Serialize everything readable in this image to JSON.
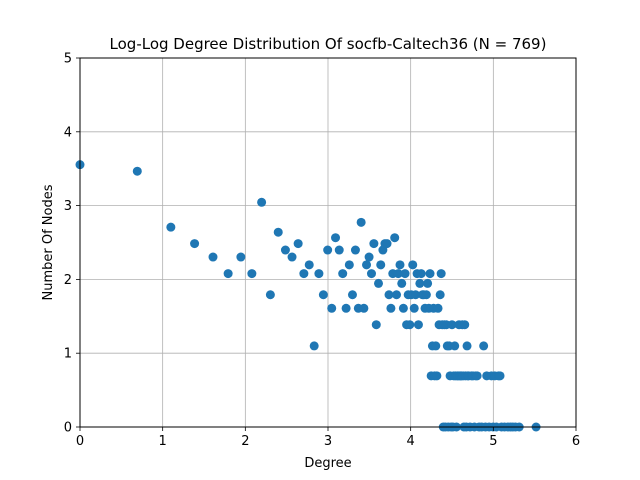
{
  "chart_data": {
    "type": "scatter",
    "title": "Log-Log Degree Distribution Of socfb-Caltech36 (N = 769)",
    "xlabel": "Degree",
    "ylabel": "Number Of Nodes",
    "xlim": [
      0,
      6
    ],
    "ylim": [
      0,
      5
    ],
    "xticks": [
      "0",
      "1",
      "2",
      "3",
      "4",
      "5",
      "6"
    ],
    "yticks": [
      "0",
      "1",
      "2",
      "3",
      "4",
      "5"
    ],
    "grid": true,
    "color": "#1f77b4",
    "points": [
      [
        0.0,
        3.555
      ],
      [
        0.693,
        3.466
      ],
      [
        1.099,
        2.708
      ],
      [
        1.386,
        2.485
      ],
      [
        1.609,
        2.303
      ],
      [
        1.792,
        2.079
      ],
      [
        1.946,
        2.303
      ],
      [
        2.079,
        2.079
      ],
      [
        2.197,
        3.045
      ],
      [
        2.303,
        1.792
      ],
      [
        2.398,
        2.639
      ],
      [
        2.485,
        2.398
      ],
      [
        2.565,
        2.303
      ],
      [
        2.639,
        2.485
      ],
      [
        2.708,
        2.079
      ],
      [
        2.773,
        2.197
      ],
      [
        2.833,
        1.099
      ],
      [
        2.89,
        2.079
      ],
      [
        2.944,
        1.792
      ],
      [
        2.996,
        2.398
      ],
      [
        3.045,
        1.609
      ],
      [
        3.091,
        2.565
      ],
      [
        3.136,
        2.398
      ],
      [
        3.178,
        2.079
      ],
      [
        3.219,
        1.609
      ],
      [
        3.258,
        2.197
      ],
      [
        3.296,
        1.792
      ],
      [
        3.332,
        2.398
      ],
      [
        3.367,
        1.609
      ],
      [
        3.401,
        2.773
      ],
      [
        3.434,
        1.609
      ],
      [
        3.466,
        2.197
      ],
      [
        3.497,
        2.303
      ],
      [
        3.526,
        2.079
      ],
      [
        3.555,
        2.485
      ],
      [
        3.584,
        1.386
      ],
      [
        3.611,
        1.946
      ],
      [
        3.638,
        2.197
      ],
      [
        3.664,
        2.398
      ],
      [
        3.689,
        2.485
      ],
      [
        3.714,
        2.485
      ],
      [
        3.738,
        1.792
      ],
      [
        3.761,
        1.609
      ],
      [
        3.784,
        2.079
      ],
      [
        3.807,
        2.565
      ],
      [
        3.829,
        1.792
      ],
      [
        3.85,
        2.079
      ],
      [
        3.871,
        2.197
      ],
      [
        3.892,
        1.946
      ],
      [
        3.912,
        1.609
      ],
      [
        3.932,
        2.079
      ],
      [
        3.951,
        1.386
      ],
      [
        3.97,
        1.792
      ],
      [
        3.989,
        1.386
      ],
      [
        4.007,
        1.792
      ],
      [
        4.025,
        2.197
      ],
      [
        4.043,
        1.609
      ],
      [
        4.06,
        1.792
      ],
      [
        4.078,
        2.079
      ],
      [
        4.094,
        1.386
      ],
      [
        4.111,
        1.946
      ],
      [
        4.127,
        2.079
      ],
      [
        4.143,
        1.792
      ],
      [
        4.159,
        1.792
      ],
      [
        4.174,
        1.609
      ],
      [
        4.19,
        1.792
      ],
      [
        4.205,
        1.946
      ],
      [
        4.22,
        1.609
      ],
      [
        4.234,
        2.079
      ],
      [
        4.248,
        0.693
      ],
      [
        4.263,
        1.099
      ],
      [
        4.277,
        1.609
      ],
      [
        4.29,
        0.693
      ],
      [
        4.304,
        1.099
      ],
      [
        4.317,
        0.693
      ],
      [
        4.331,
        1.609
      ],
      [
        4.344,
        1.386
      ],
      [
        4.357,
        1.792
      ],
      [
        4.369,
        2.079
      ],
      [
        4.382,
        1.386
      ],
      [
        4.394,
        0.0
      ],
      [
        4.407,
        1.386
      ],
      [
        4.419,
        0.0
      ],
      [
        4.431,
        1.386
      ],
      [
        4.443,
        1.099
      ],
      [
        4.454,
        0.0
      ],
      [
        4.466,
        1.099
      ],
      [
        4.477,
        0.693
      ],
      [
        4.489,
        0.0
      ],
      [
        4.5,
        1.386
      ],
      [
        4.511,
        0.0
      ],
      [
        4.522,
        0.693
      ],
      [
        4.533,
        1.099
      ],
      [
        4.543,
        0.693
      ],
      [
        4.554,
        0.0
      ],
      [
        4.564,
        0.693
      ],
      [
        4.575,
        0.693
      ],
      [
        4.585,
        1.386
      ],
      [
        4.595,
        0.693
      ],
      [
        4.605,
        0.693
      ],
      [
        4.615,
        0.693
      ],
      [
        4.625,
        1.386
      ],
      [
        4.635,
        0.693
      ],
      [
        4.644,
        0.0
      ],
      [
        4.654,
        1.386
      ],
      [
        4.663,
        0.693
      ],
      [
        4.673,
        0.0
      ],
      [
        4.682,
        1.099
      ],
      [
        4.691,
        0.693
      ],
      [
        4.7,
        0.693
      ],
      [
        4.718,
        0.0
      ],
      [
        4.736,
        0.693
      ],
      [
        4.754,
        0.693
      ],
      [
        4.771,
        0.0
      ],
      [
        4.788,
        0.693
      ],
      [
        4.804,
        0.693
      ],
      [
        4.828,
        0.0
      ],
      [
        4.86,
        0.0
      ],
      [
        4.883,
        1.099
      ],
      [
        4.905,
        0.0
      ],
      [
        4.92,
        0.693
      ],
      [
        4.949,
        0.0
      ],
      [
        4.977,
        0.693
      ],
      [
        4.997,
        0.0
      ],
      [
        5.017,
        0.693
      ],
      [
        5.037,
        0.0
      ],
      [
        5.063,
        0.693
      ],
      [
        5.081,
        0.693
      ],
      [
        5.099,
        0.0
      ],
      [
        5.136,
        0.0
      ],
      [
        5.176,
        0.0
      ],
      [
        5.209,
        0.0
      ],
      [
        5.236,
        0.0
      ],
      [
        5.268,
        0.0
      ],
      [
        5.313,
        0.0
      ],
      [
        5.517,
        0.0
      ]
    ]
  }
}
